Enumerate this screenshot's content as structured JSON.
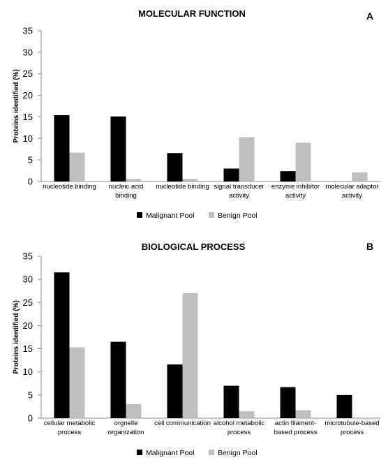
{
  "chart_data": [
    {
      "type": "bar",
      "title": "MOLECULAR FUNCTION",
      "panel_letter": "A",
      "ylabel": "Proteins identified (%)",
      "ylim": [
        0,
        35
      ],
      "yticks": [
        0,
        5,
        10,
        15,
        20,
        25,
        30,
        35
      ],
      "grid": false,
      "legend_position": "bottom",
      "categories": [
        [
          "nucleotide binding"
        ],
        [
          "nucleic acid",
          "binding"
        ],
        [
          "nucleotide binding"
        ],
        [
          "signal transducer",
          "activity"
        ],
        [
          "enzyme inhibitor",
          "activity"
        ],
        [
          "molecular adaptor",
          "activity"
        ]
      ],
      "series": [
        {
          "name": "Malignant Pool",
          "color": "#000000",
          "values": [
            15.4,
            15.1,
            6.6,
            3.0,
            2.4,
            0
          ]
        },
        {
          "name": "Benign Pool",
          "color": "#bfbfbf",
          "values": [
            6.7,
            0.6,
            0.6,
            10.3,
            9.0,
            2.1
          ]
        }
      ]
    },
    {
      "type": "bar",
      "title": "BIOLOGICAL PROCESS",
      "panel_letter": "B",
      "ylabel": "Proteins identified (%)",
      "ylim": [
        0,
        35
      ],
      "yticks": [
        0,
        5,
        10,
        15,
        20,
        25,
        30,
        35
      ],
      "grid": false,
      "legend_position": "bottom",
      "categories": [
        [
          "cellular metabolic",
          "process"
        ],
        [
          "orgnelle",
          "organization"
        ],
        [
          "cell communication"
        ],
        [
          "alcohol metabolic",
          "process"
        ],
        [
          "actin filament-",
          "based process"
        ],
        [
          "microtubule-based",
          "process"
        ]
      ],
      "series": [
        {
          "name": "Malignant Pool",
          "color": "#000000",
          "values": [
            31.5,
            16.5,
            11.6,
            7.0,
            6.7,
            5.0
          ]
        },
        {
          "name": "Benign Pool",
          "color": "#bfbfbf",
          "values": [
            15.3,
            3.0,
            27.0,
            1.5,
            1.7,
            0
          ]
        }
      ]
    }
  ]
}
